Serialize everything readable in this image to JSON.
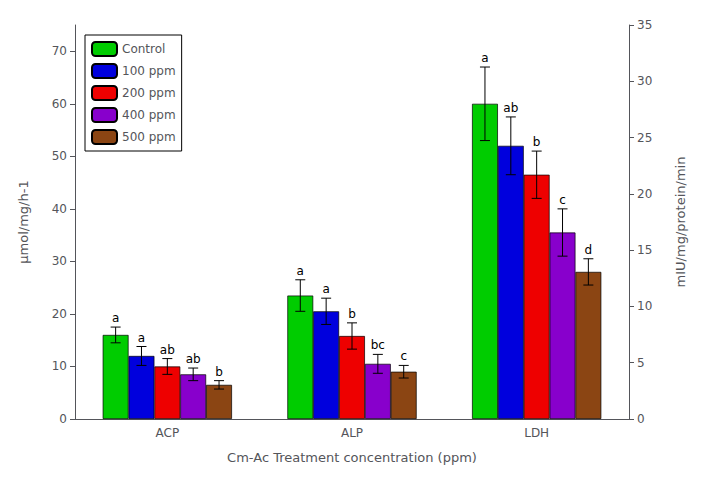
{
  "chart_data": {
    "type": "bar",
    "categories": [
      "ACP",
      "ALP",
      "LDH"
    ],
    "series": [
      {
        "name": "Control",
        "color": "#00cc00",
        "values": [
          16.0,
          23.5,
          60.0
        ],
        "errors": [
          1.5,
          3.0,
          7.0
        ],
        "annotations": [
          "a",
          "a",
          "a"
        ]
      },
      {
        "name": "100 ppm",
        "color": "#0000dd",
        "values": [
          12.0,
          20.5,
          52.0
        ],
        "errors": [
          1.8,
          2.5,
          5.5
        ],
        "annotations": [
          "a",
          "a",
          "ab"
        ]
      },
      {
        "name": "200 ppm",
        "color": "#ee0000",
        "values": [
          10.0,
          15.8,
          46.5
        ],
        "errors": [
          1.5,
          2.5,
          4.5
        ],
        "annotations": [
          "ab",
          "b",
          "b"
        ]
      },
      {
        "name": "400 ppm",
        "color": "#8800cc",
        "values": [
          8.5,
          10.5,
          35.5
        ],
        "errors": [
          1.2,
          1.8,
          4.5
        ],
        "annotations": [
          "ab",
          "bc",
          "c"
        ]
      },
      {
        "name": "500 ppm",
        "color": "#8B4513",
        "values": [
          6.5,
          9.0,
          28.0
        ],
        "errors": [
          0.8,
          1.2,
          2.5
        ],
        "annotations": [
          "b",
          "c",
          "d"
        ]
      }
    ],
    "xlabel": "Cm-Ac Treatment concentration (ppm)",
    "ylabel": "μmol/mg/h-1",
    "y2label": "mIU/mg/protein/min",
    "ylim": [
      0,
      75
    ],
    "yticks": [
      0,
      10,
      20,
      30,
      40,
      50,
      60,
      70
    ],
    "y2lim": [
      0,
      35
    ],
    "y2ticks": [
      0,
      5,
      10,
      15,
      20,
      25,
      30,
      35
    ],
    "legend": "upper left",
    "grid": false
  }
}
